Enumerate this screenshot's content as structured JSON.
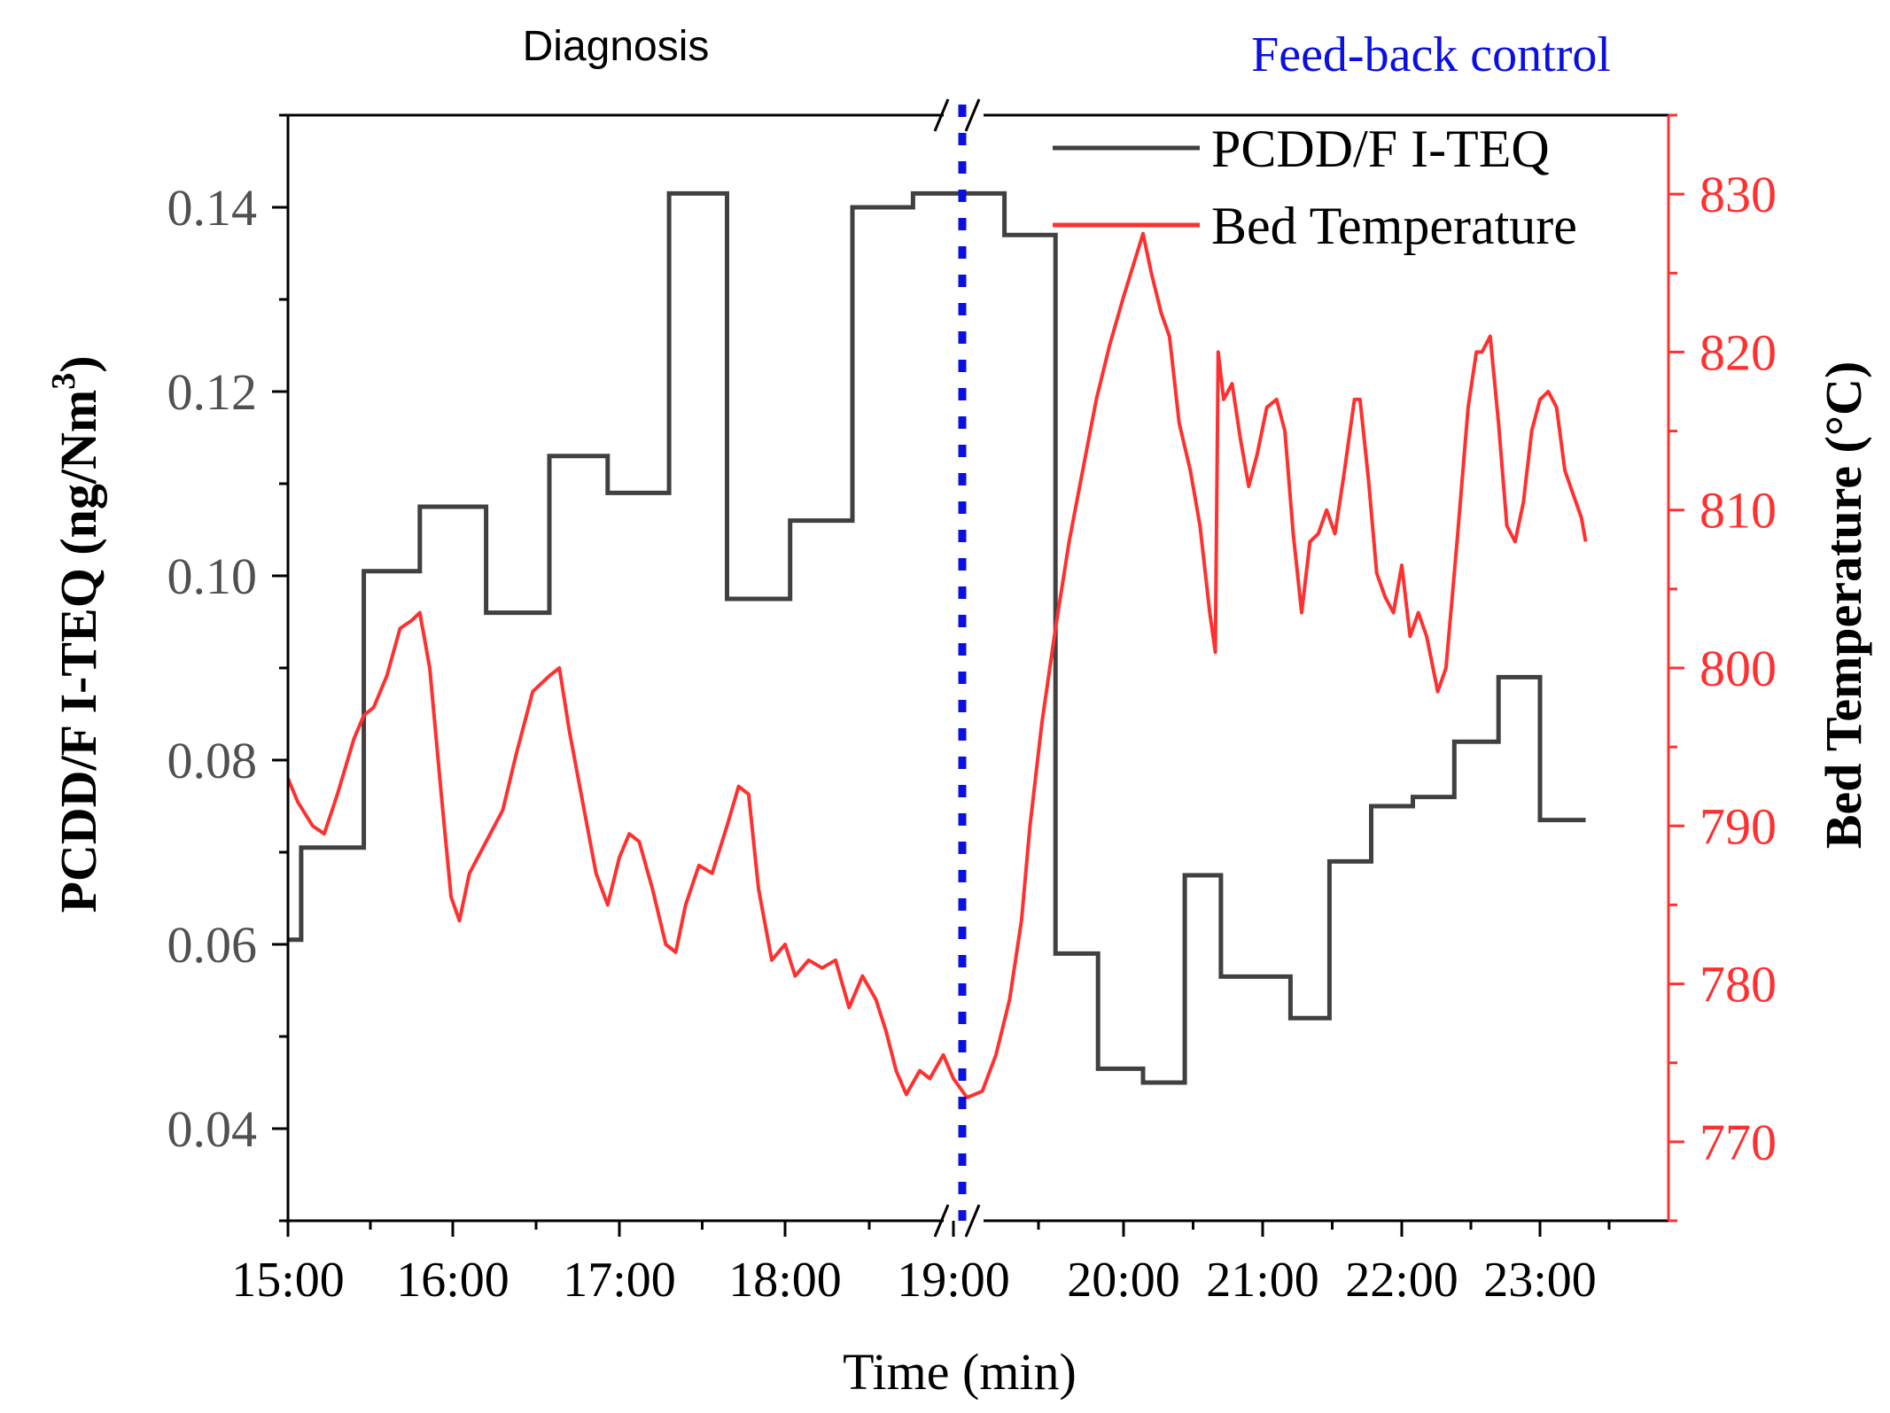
{
  "chart_data": {
    "type": "line",
    "section_labels": {
      "left": "Diagnosis",
      "right": "Feed-back control"
    },
    "xlabel": "Time (min)",
    "ylabel_left": {
      "main": "PCDD/F I-TEQ (ng/Nm",
      "sup": "3",
      "close": ")"
    },
    "ylabel_right": "Bed Temperature (°C)",
    "x_ticks": [
      "15:00",
      "16:00",
      "17:00",
      "18:00",
      "19:00",
      "20:00",
      "21:00",
      "22:00",
      "23:00"
    ],
    "y_left_ticks": [
      "0.04",
      "0.06",
      "0.08",
      "0.10",
      "0.12",
      "0.14"
    ],
    "y_right_ticks": [
      "770",
      "780",
      "790",
      "800",
      "810",
      "820",
      "830"
    ],
    "ylim_left": [
      0.03,
      0.15
    ],
    "ylim_right": [
      765,
      835
    ],
    "x_axis_break": "19:00 (broken axis, time compressed after break)",
    "colors": {
      "pcdd": "#404040",
      "temp": "#ff3030",
      "divider": "#0a10e0",
      "right_axis": "#ff3030",
      "left_tick": "#505050"
    },
    "series": [
      {
        "name": "PCDD/F I-TEQ",
        "axis": "left",
        "style": "step",
        "points": [
          [
            0.0,
            0.0605
          ],
          [
            0.08,
            0.0605
          ],
          [
            0.08,
            0.0705
          ],
          [
            0.46,
            0.0705
          ],
          [
            0.46,
            0.1005
          ],
          [
            0.8,
            0.1005
          ],
          [
            0.8,
            0.1075
          ],
          [
            1.2,
            0.1075
          ],
          [
            1.2,
            0.096
          ],
          [
            1.58,
            0.096
          ],
          [
            1.58,
            0.113
          ],
          [
            1.93,
            0.113
          ],
          [
            1.93,
            0.109
          ],
          [
            2.3,
            0.109
          ],
          [
            2.3,
            0.1415
          ],
          [
            2.65,
            0.1415
          ],
          [
            2.65,
            0.0975
          ],
          [
            3.03,
            0.0975
          ],
          [
            3.03,
            0.106
          ],
          [
            3.4,
            0.106
          ],
          [
            3.4,
            0.14
          ],
          [
            3.76,
            0.14
          ],
          [
            3.76,
            0.1415
          ],
          [
            4.3,
            0.1415
          ],
          [
            4.3,
            0.137
          ],
          [
            4.6,
            0.137
          ],
          [
            4.6,
            0.059
          ],
          [
            4.85,
            0.059
          ],
          [
            4.85,
            0.0465
          ],
          [
            5.14,
            0.0465
          ],
          [
            5.14,
            0.045
          ],
          [
            5.44,
            0.045
          ],
          [
            5.44,
            0.0675
          ],
          [
            5.7,
            0.0675
          ],
          [
            5.7,
            0.0565
          ],
          [
            6.2,
            0.0565
          ],
          [
            6.2,
            0.052
          ],
          [
            6.48,
            0.052
          ],
          [
            6.48,
            0.069
          ],
          [
            6.78,
            0.069
          ],
          [
            6.78,
            0.075
          ],
          [
            7.08,
            0.075
          ],
          [
            7.08,
            0.076
          ],
          [
            7.38,
            0.076
          ],
          [
            7.38,
            0.082
          ],
          [
            7.7,
            0.082
          ],
          [
            7.7,
            0.089
          ],
          [
            8.0,
            0.089
          ],
          [
            8.0,
            0.0735
          ],
          [
            8.33,
            0.0735
          ]
        ]
      },
      {
        "name": "Bed Temperature",
        "axis": "right",
        "style": "line",
        "points": [
          [
            0.0,
            793.0
          ],
          [
            0.06,
            791.5
          ],
          [
            0.15,
            790.0
          ],
          [
            0.22,
            789.5
          ],
          [
            0.3,
            792.0
          ],
          [
            0.4,
            795.5
          ],
          [
            0.46,
            797.0
          ],
          [
            0.52,
            797.5
          ],
          [
            0.6,
            799.5
          ],
          [
            0.68,
            802.5
          ],
          [
            0.75,
            803.0
          ],
          [
            0.8,
            803.5
          ],
          [
            0.86,
            800.0
          ],
          [
            0.93,
            792.0
          ],
          [
            0.99,
            785.5
          ],
          [
            1.04,
            784.0
          ],
          [
            1.1,
            787.0
          ],
          [
            1.2,
            789.0
          ],
          [
            1.3,
            791.0
          ],
          [
            1.38,
            794.5
          ],
          [
            1.48,
            798.5
          ],
          [
            1.58,
            799.5
          ],
          [
            1.64,
            800.0
          ],
          [
            1.7,
            796.0
          ],
          [
            1.78,
            791.5
          ],
          [
            1.86,
            787.0
          ],
          [
            1.93,
            785.0
          ],
          [
            2.0,
            788.0
          ],
          [
            2.06,
            789.5
          ],
          [
            2.12,
            789.0
          ],
          [
            2.2,
            786.0
          ],
          [
            2.28,
            782.5
          ],
          [
            2.34,
            782.0
          ],
          [
            2.4,
            785.0
          ],
          [
            2.48,
            787.5
          ],
          [
            2.56,
            787.0
          ],
          [
            2.65,
            790.0
          ],
          [
            2.72,
            792.5
          ],
          [
            2.78,
            792.0
          ],
          [
            2.84,
            786.0
          ],
          [
            2.92,
            781.5
          ],
          [
            3.0,
            782.5
          ],
          [
            3.06,
            780.5
          ],
          [
            3.14,
            781.5
          ],
          [
            3.22,
            781.0
          ],
          [
            3.3,
            781.5
          ],
          [
            3.38,
            778.5
          ],
          [
            3.46,
            780.5
          ],
          [
            3.54,
            779.0
          ],
          [
            3.6,
            777.0
          ],
          [
            3.66,
            774.5
          ],
          [
            3.72,
            773.0
          ],
          [
            3.8,
            774.5
          ],
          [
            3.86,
            774.0
          ],
          [
            3.94,
            775.5
          ],
          [
            4.0,
            774.0
          ],
          [
            4.08,
            772.8
          ],
          [
            4.17,
            773.2
          ],
          [
            4.25,
            775.5
          ],
          [
            4.33,
            779.0
          ],
          [
            4.4,
            784.0
          ],
          [
            4.45,
            790.0
          ],
          [
            4.52,
            796.5
          ],
          [
            4.6,
            802.5
          ],
          [
            4.68,
            808.0
          ],
          [
            4.76,
            812.5
          ],
          [
            4.84,
            817.0
          ],
          [
            4.92,
            820.5
          ],
          [
            5.0,
            823.5
          ],
          [
            5.07,
            825.5
          ],
          [
            5.14,
            827.5
          ],
          [
            5.2,
            825.0
          ],
          [
            5.27,
            822.5
          ],
          [
            5.33,
            821.0
          ],
          [
            5.4,
            815.5
          ],
          [
            5.48,
            812.5
          ],
          [
            5.55,
            809.0
          ],
          [
            5.62,
            803.5
          ],
          [
            5.66,
            801.0
          ],
          [
            5.68,
            820.0
          ],
          [
            5.72,
            817.0
          ],
          [
            5.78,
            818.0
          ],
          [
            5.84,
            814.5
          ],
          [
            5.9,
            811.5
          ],
          [
            5.96,
            813.5
          ],
          [
            6.03,
            816.5
          ],
          [
            6.1,
            817.0
          ],
          [
            6.16,
            815.0
          ],
          [
            6.22,
            808.5
          ],
          [
            6.28,
            803.5
          ],
          [
            6.34,
            808.0
          ],
          [
            6.4,
            808.5
          ],
          [
            6.46,
            810.0
          ],
          [
            6.52,
            808.5
          ],
          [
            6.58,
            812.0
          ],
          [
            6.66,
            817.0
          ],
          [
            6.7,
            817.0
          ],
          [
            6.76,
            812.0
          ],
          [
            6.82,
            806.0
          ],
          [
            6.88,
            804.5
          ],
          [
            6.94,
            803.5
          ],
          [
            7.0,
            806.5
          ],
          [
            7.06,
            802.0
          ],
          [
            7.12,
            803.5
          ],
          [
            7.18,
            802.0
          ],
          [
            7.26,
            798.5
          ],
          [
            7.32,
            800.0
          ],
          [
            7.4,
            808.0
          ],
          [
            7.48,
            816.5
          ],
          [
            7.54,
            820.0
          ],
          [
            7.58,
            820.0
          ],
          [
            7.64,
            821.0
          ],
          [
            7.7,
            815.5
          ],
          [
            7.76,
            809.0
          ],
          [
            7.82,
            808.0
          ],
          [
            7.88,
            810.5
          ],
          [
            7.94,
            815.0
          ],
          [
            8.0,
            817.0
          ],
          [
            8.06,
            817.5
          ],
          [
            8.12,
            816.5
          ],
          [
            8.18,
            812.5
          ],
          [
            8.24,
            811.0
          ],
          [
            8.3,
            809.5
          ],
          [
            8.33,
            808.0
          ]
        ]
      }
    ],
    "legend": [
      {
        "label": "PCDD/F I-TEQ",
        "series": 0
      },
      {
        "label": "Bed Temperature",
        "series": 1
      }
    ]
  }
}
